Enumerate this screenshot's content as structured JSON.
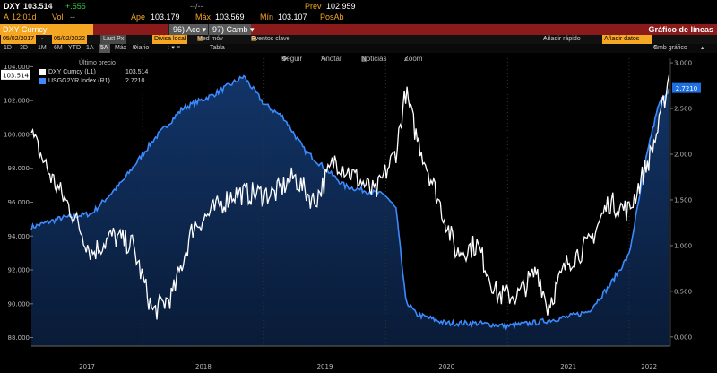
{
  "quote": {
    "ticker": "DXY",
    "last": "103.514",
    "change": "+.555",
    "dash1": "--/--",
    "prev_label": "Prev",
    "prev_value": "102.959",
    "time_prefix": "A",
    "time": "12:01d",
    "vol_label": "Vol",
    "vol_value": "--",
    "open_label": "Ape",
    "open_value": "103.179",
    "high_label": "Máx",
    "high_value": "103.569",
    "low_label": "Mín",
    "low_value": "103.107",
    "pos_label": "PosAb"
  },
  "menubar": {
    "security": "DXY Curncy",
    "menu1": "96) Acc",
    "menu2": "97) Camb",
    "title": "Gráfico de líneas"
  },
  "toolbar": {
    "start_date": "05/02/2017",
    "end_date": "05/02/2022",
    "price_field": "Last Px",
    "currency": "Divisa local",
    "moving_avg": "Med móv",
    "key_events": "Eventos clave",
    "quick_add": "Añadir rápido",
    "add_data": "Añadir datos",
    "edit_chart": "Cmb gráfico"
  },
  "periods": [
    "1D",
    "3D",
    "1M",
    "6M",
    "YTD",
    "1A",
    "5A",
    "Máx"
  ],
  "active_period": "5A",
  "frequency": "Diario",
  "table_label": "Tabla",
  "overlay_tools": {
    "follow": "Seguir",
    "annotate": "Anotar",
    "news": "Noticias",
    "zoom": "Zoom"
  },
  "legend": {
    "header": "Último precio",
    "items": [
      {
        "name": "DXY Curncy",
        "axis": "(L1)",
        "value": "103.514",
        "color": "#ffffff"
      },
      {
        "name": "USGG2YR Index",
        "axis": "(R1)",
        "value": "2.7210",
        "color": "#3b8bff"
      }
    ]
  },
  "chart_data": {
    "type": "line",
    "x_labels": [
      "2017",
      "2018",
      "2019",
      "2020",
      "2021",
      "2022"
    ],
    "left_axis": {
      "ticks": [
        "88.000",
        "90.000",
        "92.000",
        "94.000",
        "96.000",
        "98.000",
        "100.000",
        "102.000",
        "104.000"
      ],
      "range": [
        87.5,
        104.5
      ]
    },
    "right_axis": {
      "ticks": [
        "0.000",
        "0.500",
        "1.000",
        "1.500",
        "2.000",
        "2.500",
        "3.000"
      ],
      "range": [
        -0.1,
        3.05
      ]
    },
    "last_left_tag": "103.514",
    "last_right_tag": "2.7210",
    "series": [
      {
        "name": "DXY Curncy",
        "axis": "left",
        "color": "#ffffff",
        "x": [
          "2017-02",
          "2017-04",
          "2017-06",
          "2017-08",
          "2017-10",
          "2017-12",
          "2018-02",
          "2018-04",
          "2018-06",
          "2018-08",
          "2018-10",
          "2018-12",
          "2019-02",
          "2019-04",
          "2019-06",
          "2019-08",
          "2019-10",
          "2019-12",
          "2020-02",
          "2020-03",
          "2020-04",
          "2020-06",
          "2020-08",
          "2020-10",
          "2020-12",
          "2021-02",
          "2021-04",
          "2021-05",
          "2021-07",
          "2021-09",
          "2021-11",
          "2022-01",
          "2022-03",
          "2022-04",
          "2022-05"
        ],
        "y": [
          100.0,
          97.5,
          95.5,
          93.0,
          94.0,
          93.5,
          89.5,
          90.5,
          94.5,
          95.5,
          96.5,
          96.5,
          96.5,
          97.5,
          96.0,
          98.5,
          97.5,
          96.5,
          99.0,
          102.5,
          100.0,
          96.5,
          93.0,
          93.5,
          90.5,
          90.5,
          92.0,
          89.8,
          92.5,
          93.5,
          96.0,
          95.5,
          98.5,
          100.5,
          103.5
        ]
      },
      {
        "name": "USGG2YR Index",
        "axis": "right",
        "color": "#3b8bff",
        "x": [
          "2017-02",
          "2017-05",
          "2017-08",
          "2017-11",
          "2018-02",
          "2018-05",
          "2018-08",
          "2018-11",
          "2019-01",
          "2019-03",
          "2019-05",
          "2019-07",
          "2019-09",
          "2019-11",
          "2020-01",
          "2020-02",
          "2020-03",
          "2020-04",
          "2020-07",
          "2020-10",
          "2021-01",
          "2021-04",
          "2021-07",
          "2021-09",
          "2021-11",
          "2022-01",
          "2022-03",
          "2022-04",
          "2022-05"
        ],
        "y": [
          1.2,
          1.3,
          1.35,
          1.7,
          2.15,
          2.5,
          2.65,
          2.85,
          2.55,
          2.4,
          2.05,
          1.85,
          1.65,
          1.6,
          1.55,
          1.4,
          0.4,
          0.25,
          0.15,
          0.15,
          0.12,
          0.16,
          0.22,
          0.28,
          0.55,
          0.9,
          2.1,
          2.55,
          2.72
        ]
      }
    ]
  }
}
